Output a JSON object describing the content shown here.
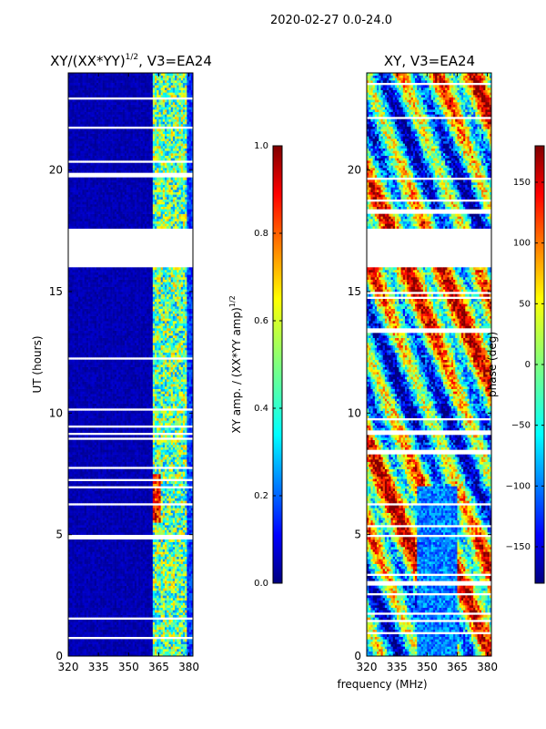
{
  "figure": {
    "suptitle": "2020-02-27 0.0-24.0",
    "xlabel": "frequency (MHz)"
  },
  "colors": {
    "jet": [
      "#00007f",
      "#0000ff",
      "#007fff",
      "#00ffff",
      "#7fff7f",
      "#ffff00",
      "#ff7f00",
      "#ff0000",
      "#7f0000"
    ],
    "axis": "#000000",
    "background": "#ffffff"
  },
  "chart_data": [
    {
      "type": "heatmap",
      "title_main": "XY/(XX*YY)",
      "title_sup": "1/2",
      "title_tail": ", V3=EA24",
      "xlabel": "",
      "ylabel": "UT (hours)",
      "xlim": [
        320,
        382
      ],
      "ylim": [
        0,
        24
      ],
      "xticks": [
        320,
        335,
        350,
        365,
        380
      ],
      "yticks": [
        0,
        5,
        10,
        15,
        20
      ],
      "data_gap_hours": [
        16.0,
        17.6
      ],
      "colorbar": {
        "label_main": "XY amp. / (XX*YY amp)",
        "label_sup": "1/2",
        "range": [
          0.0,
          1.0
        ],
        "ticks": [
          "0.0",
          "0.2",
          "0.4",
          "0.6",
          "0.8",
          "1.0"
        ],
        "tick_values": [
          0.0,
          0.2,
          0.4,
          0.6,
          0.8,
          1.0
        ]
      }
    },
    {
      "type": "heatmap",
      "title": "XY, V3=EA24",
      "xlabel": "",
      "ylabel": "",
      "xlim": [
        320,
        382
      ],
      "ylim": [
        0,
        24
      ],
      "xticks": [
        320,
        335,
        350,
        365,
        380
      ],
      "yticks": [
        0,
        5,
        10,
        15,
        20
      ],
      "data_gap_hours": [
        16.0,
        17.6
      ],
      "colorbar": {
        "label": "phase (deg)",
        "range": [
          -180,
          180
        ],
        "ticks": [
          "−150",
          "−100",
          "−50",
          "0",
          "50",
          "100",
          "150"
        ],
        "tick_values": [
          -150,
          -100,
          -50,
          0,
          50,
          100,
          150
        ]
      }
    }
  ]
}
